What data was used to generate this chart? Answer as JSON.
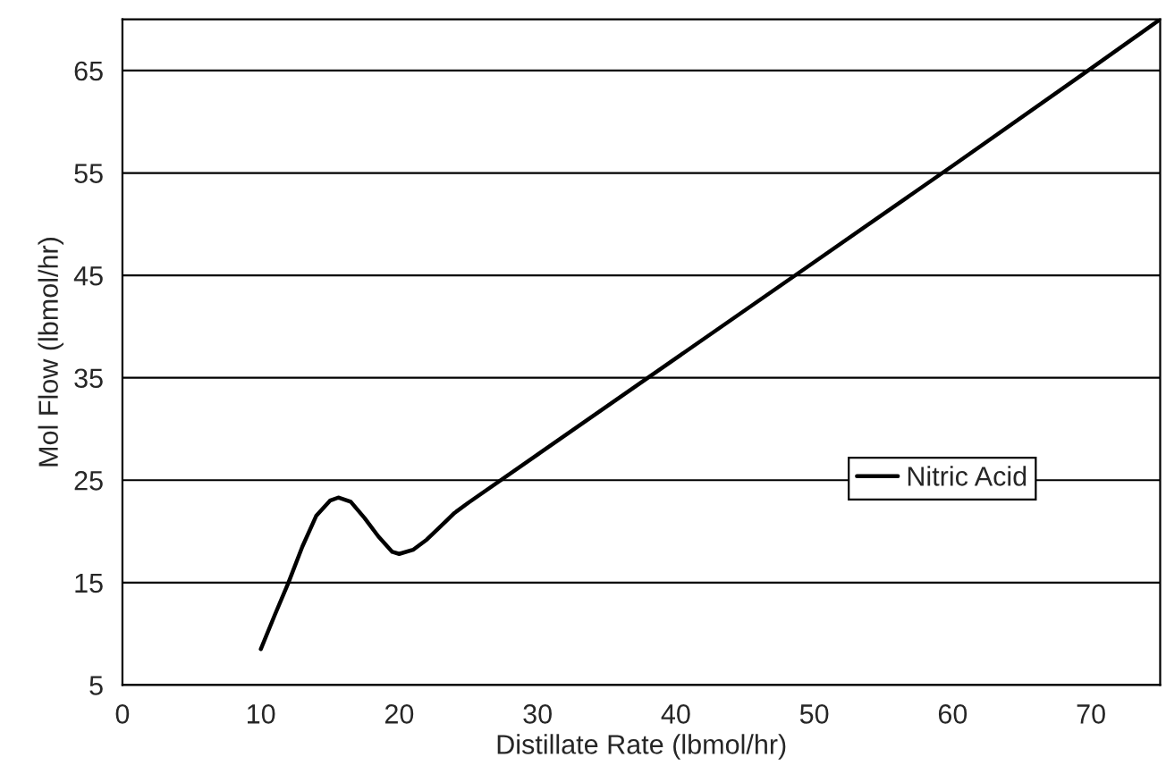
{
  "chart_data": {
    "type": "line",
    "xlabel": "Distillate Rate (lbmol/hr)",
    "ylabel": "Mol Flow (lbmol/hr)",
    "xlim": [
      0,
      75
    ],
    "xticks": [
      0,
      10,
      20,
      30,
      40,
      50,
      60,
      70
    ],
    "ylim": [
      5,
      70
    ],
    "yticks": [
      5,
      15,
      25,
      35,
      45,
      55,
      65
    ],
    "grid": "y",
    "legend": "right",
    "line_style": "solid",
    "marker": "none",
    "series": [
      {
        "name": "Nitric Acid",
        "color": "#000000",
        "x": [
          10,
          11,
          12,
          13,
          14,
          15,
          15.6,
          16.5,
          17.5,
          18.5,
          19.5,
          20,
          21,
          22,
          23,
          24,
          25,
          30,
          40,
          50,
          60,
          70,
          75
        ],
        "values": [
          8.5,
          11.8,
          15.0,
          18.5,
          21.5,
          23.0,
          23.3,
          22.9,
          21.3,
          19.5,
          18.0,
          17.8,
          18.2,
          19.2,
          20.5,
          21.8,
          22.8,
          27.5,
          36.9,
          46.3,
          55.7,
          65.2,
          70
        ]
      }
    ]
  }
}
